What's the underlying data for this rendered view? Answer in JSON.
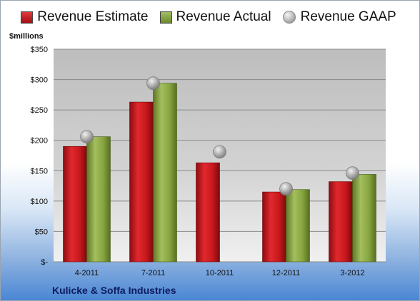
{
  "legend": {
    "items": [
      {
        "label": "Revenue Estimate",
        "color": "#c0161c",
        "marker": "square"
      },
      {
        "label": "Revenue Actual",
        "color": "#7c9a3c",
        "marker": "square"
      },
      {
        "label": "Revenue GAAP",
        "color": "#a8a8a8",
        "marker": "circle"
      }
    ]
  },
  "axis": {
    "unit_label": "$millions"
  },
  "footer": {
    "company": "Kulicke & Soffa Industries"
  },
  "chart_data": {
    "type": "bar",
    "categories": [
      "4-2011",
      "7-2011",
      "10-2011",
      "12-2011",
      "3-2012"
    ],
    "series": [
      {
        "name": "Revenue Estimate",
        "values": [
          190,
          263,
          163,
          115,
          132
        ]
      },
      {
        "name": "Revenue Actual",
        "values": [
          206,
          294,
          null,
          119,
          144
        ]
      },
      {
        "name": "Revenue GAAP",
        "values": [
          206,
          294,
          181,
          120,
          146
        ]
      }
    ],
    "ylabel": "$millions",
    "ylim": [
      0,
      350
    ],
    "yticks": [
      0,
      50,
      100,
      150,
      200,
      250,
      300,
      350
    ],
    "ytick_labels": [
      "$-",
      "$50",
      "$100",
      "$150",
      "$200",
      "$250",
      "$300",
      "$350"
    ],
    "grid": true,
    "legend_position": "top"
  }
}
